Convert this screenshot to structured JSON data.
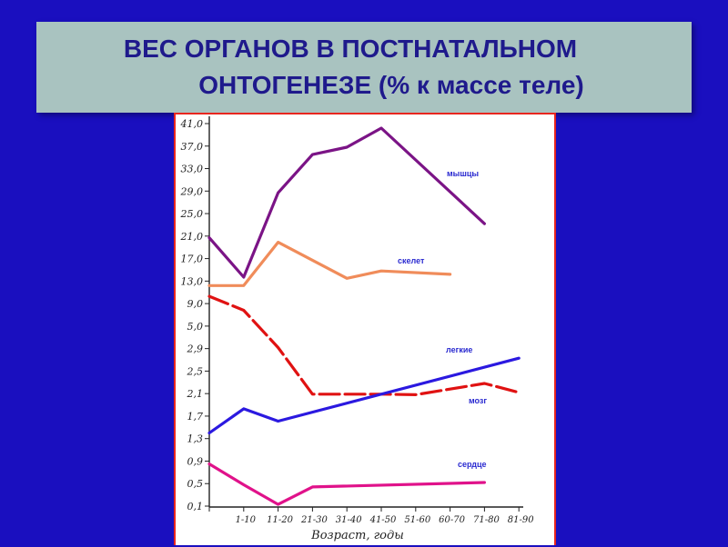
{
  "title": {
    "line1": "ВЕС ОРГАНОВ  В ПОСТНАТАЛЬНОМ",
    "line2": "ОНТОГЕНЕЗЕ (% к массе теле)"
  },
  "chart_data": {
    "type": "line",
    "title": "ВЕС ОРГАНОВ В ПОСТНАТАЛЬНОМ ОНТОГЕНЕЗЕ (% к массе теле)",
    "xlabel": "Возраст, годы",
    "ylabel": "",
    "grid": false,
    "categories": [
      "",
      "1-10",
      "11-20",
      "21-30",
      "31-40",
      "41-50",
      "51-60",
      "60-70",
      "71-80",
      "81-90"
    ],
    "y_ticks": [
      "0,1",
      "0,5",
      "0,9",
      "1,3",
      "1,7",
      "2,1",
      "2,5",
      "2,9",
      "5,0",
      "9,0",
      "13,0",
      "17,0",
      "21,0",
      "25,0",
      "29,0",
      "33,0",
      "37,0",
      "41,0"
    ],
    "y_scale": "piecewise (0.1–2.9 step 0.4, then 5.0, then 9.0–41.0 step 4)",
    "series": [
      {
        "name": "мышцы",
        "color": "#7b1486",
        "style": "solid",
        "x": [
          0,
          1,
          2,
          3,
          4,
          5,
          6,
          7,
          8
        ],
        "values": [
          20.7,
          13.7,
          28.7,
          35.5,
          36.8,
          40.2,
          null,
          null,
          23.2
        ]
      },
      {
        "name": "скелет",
        "color": "#f08c5a",
        "style": "solid",
        "x": [
          0,
          1,
          2,
          3,
          4,
          5,
          6,
          7
        ],
        "values": [
          12.2,
          12.2,
          19.9,
          null,
          13.5,
          14.8,
          null,
          14.2
        ]
      },
      {
        "name": "легкие",
        "color": "#e01212",
        "style": "dashed",
        "x": [
          0,
          1,
          2,
          3,
          4,
          5,
          6,
          7,
          8,
          9
        ],
        "values": [
          10.3,
          7.8,
          3.0,
          2.09,
          null,
          2.09,
          2.08,
          null,
          2.28,
          2.12
        ]
      },
      {
        "name": "мозг",
        "color": "#2b19e0",
        "style": "solid",
        "x": [
          0,
          1,
          2,
          9
        ],
        "values": [
          1.4,
          1.83,
          1.61,
          2.73
        ]
      },
      {
        "name": "сердце",
        "color": "#e0128a",
        "style": "solid",
        "x": [
          0,
          1,
          2,
          3,
          8
        ],
        "values": [
          0.85,
          0.48,
          0.13,
          0.44,
          0.52
        ]
      }
    ]
  }
}
